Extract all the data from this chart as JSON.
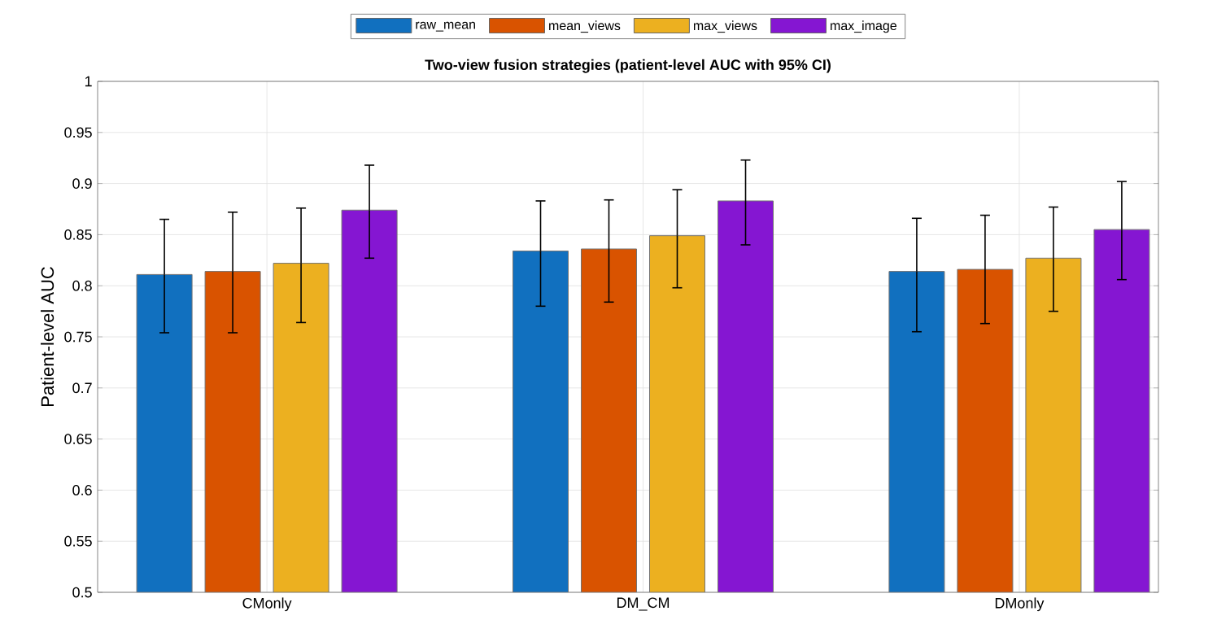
{
  "chart_data": {
    "type": "bar",
    "title": "Two-view fusion strategies (patient-level AUC with 95% CI)",
    "ylabel": "Patient-level AUC",
    "categories": [
      "CMonly",
      "DM_CM",
      "DMonly"
    ],
    "series": [
      {
        "name": "raw_mean",
        "color": "#1170bf",
        "values": [
          0.811,
          0.834,
          0.814
        ],
        "errors": [
          [
            0.754,
            0.865
          ],
          [
            0.78,
            0.883
          ],
          [
            0.755,
            0.866
          ]
        ]
      },
      {
        "name": "mean_views",
        "color": "#d95300",
        "values": [
          0.814,
          0.836,
          0.816
        ],
        "errors": [
          [
            0.754,
            0.872
          ],
          [
            0.784,
            0.884
          ],
          [
            0.763,
            0.869
          ]
        ]
      },
      {
        "name": "max_views",
        "color": "#ecb020",
        "values": [
          0.822,
          0.849,
          0.827
        ],
        "errors": [
          [
            0.764,
            0.876
          ],
          [
            0.798,
            0.894
          ],
          [
            0.775,
            0.877
          ]
        ]
      },
      {
        "name": "max_image",
        "color": "#8516d2",
        "values": [
          0.874,
          0.883,
          0.855
        ],
        "errors": [
          [
            0.827,
            0.918
          ],
          [
            0.84,
            0.923
          ],
          [
            0.806,
            0.902
          ]
        ]
      }
    ],
    "ylim": [
      0.5,
      1
    ],
    "yticks": [
      0.5,
      0.55,
      0.6,
      0.65,
      0.7,
      0.75,
      0.8,
      0.85,
      0.9,
      0.95,
      1
    ],
    "grid": true,
    "legend": "top"
  }
}
